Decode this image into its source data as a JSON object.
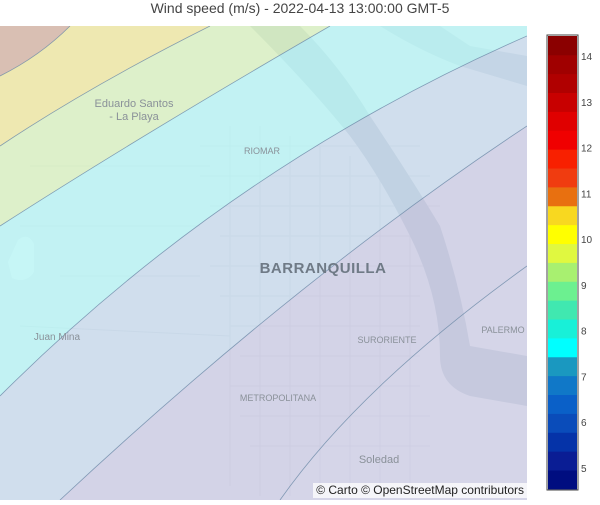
{
  "title": "Wind speed (m/s) - 2022-04-13 13:00:00 GMT-5",
  "attribution": "© Carto © OpenStreetMap contributors",
  "map": {
    "places": {
      "eduardo_line1": "Eduardo Santos",
      "eduardo_line2": "- La Playa",
      "riomar": "RIOMAR",
      "barranquilla": "BARRANQUILLA",
      "juan_mina": "Juan Mina",
      "suroriente": "SURORIENTE",
      "palermo": "PALERMO",
      "metropolitana": "METROPOLITANA",
      "soledad": "Soledad"
    }
  },
  "colorbar": {
    "ticks": [
      "5",
      "6",
      "7",
      "8",
      "9",
      "10",
      "11",
      "12",
      "13",
      "14"
    ],
    "colors": [
      "#000d80",
      "#0a1d94",
      "#0533a8",
      "#0a4cba",
      "#0a60c8",
      "#1078c8",
      "#1a98c0",
      "#00ffff",
      "#18f0d8",
      "#40e8b0",
      "#6cf090",
      "#a8f070",
      "#e0f840",
      "#ffff00",
      "#f8d820",
      "#e87010",
      "#f03c10",
      "#f82000",
      "#f00000",
      "#e00000",
      "#c80000",
      "#b00000",
      "#a00000",
      "#8b0000"
    ]
  }
}
